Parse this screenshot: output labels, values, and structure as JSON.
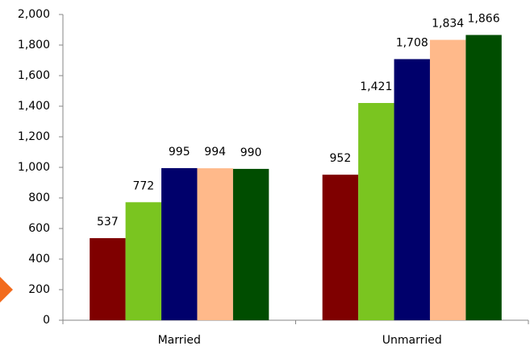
{
  "chart_data": {
    "type": "bar",
    "categories": [
      "Married",
      "Unmarried"
    ],
    "series": [
      {
        "color": "#7f0000",
        "values": [
          537,
          952
        ],
        "value_labels": [
          "537",
          "952"
        ]
      },
      {
        "color": "#7ac520",
        "values": [
          772,
          1421
        ],
        "value_labels": [
          "772",
          "1,421"
        ]
      },
      {
        "color": "#00006b",
        "values": [
          995,
          1708
        ],
        "value_labels": [
          "995",
          "1,708"
        ]
      },
      {
        "color": "#ffb98a",
        "values": [
          994,
          1834
        ],
        "value_labels": [
          "994",
          "1,834"
        ]
      },
      {
        "color": "#004d00",
        "values": [
          990,
          1866
        ],
        "value_labels": [
          "990",
          "1,866"
        ]
      }
    ],
    "ylim": [
      0,
      2000
    ],
    "yticks": [
      0,
      200,
      400,
      600,
      800,
      {
        "value": 1000,
        "label": "1,000"
      },
      {
        "value": 1200,
        "label": "1,200"
      },
      {
        "value": 1400,
        "label": "1,400"
      },
      {
        "value": 1600,
        "label": "1,600"
      },
      {
        "value": 1800,
        "label": "1,800"
      },
      {
        "value": 2000,
        "label": "2,000"
      }
    ],
    "grid": false
  }
}
